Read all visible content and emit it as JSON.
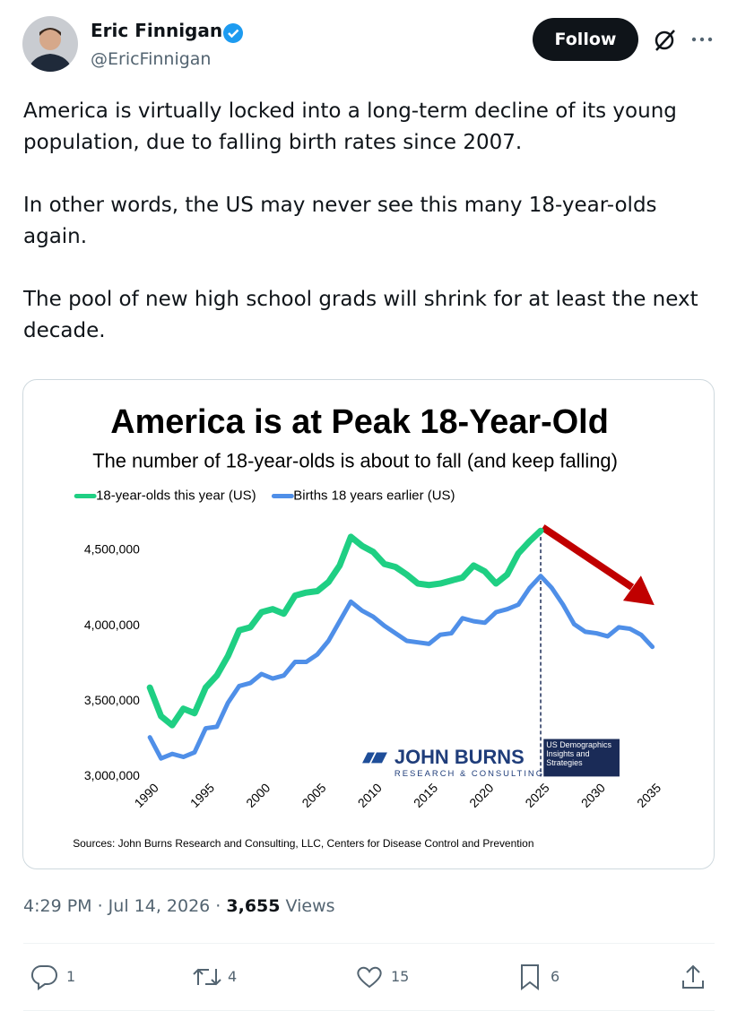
{
  "header": {
    "name": "Eric Finnigan",
    "handle": "@EricFinnigan",
    "follow": "Follow"
  },
  "text": [
    "America is virtually locked into a long-term decline of its young population, due to falling birth rates since 2007.",
    "In other words, the US may never see this many 18-year-olds again.",
    "The pool of new high school grads will shrink for at least the next decade."
  ],
  "chart_data": {
    "type": "line",
    "title": "America is at Peak 18-Year-Old",
    "subtitle": "The number of 18-year-olds is about to fall (and keep falling)",
    "x": [
      1990,
      1991,
      1992,
      1993,
      1994,
      1995,
      1996,
      1997,
      1998,
      1999,
      2000,
      2001,
      2002,
      2003,
      2004,
      2005,
      2006,
      2007,
      2008,
      2009,
      2010,
      2011,
      2012,
      2013,
      2014,
      2015,
      2016,
      2017,
      2018,
      2019,
      2020,
      2021,
      2022,
      2023,
      2024,
      2025,
      2026,
      2027,
      2028,
      2029,
      2030,
      2031,
      2032,
      2033,
      2034,
      2035
    ],
    "series": [
      {
        "name": "18-year-olds this year (US)",
        "color": "#1fcf83",
        "values": [
          3590000,
          3400000,
          3340000,
          3450000,
          3420000,
          3590000,
          3670000,
          3800000,
          3970000,
          3990000,
          4090000,
          4110000,
          4080000,
          4200000,
          4220000,
          4230000,
          4290000,
          4400000,
          4590000,
          4530000,
          4490000,
          4410000,
          4390000,
          4340000,
          4280000,
          4270000,
          4280000,
          4300000,
          4320000,
          4400000,
          4360000,
          4280000,
          4340000,
          4480000,
          4560000,
          4630000,
          null,
          null,
          null,
          null,
          null,
          null,
          null,
          null,
          null,
          null
        ]
      },
      {
        "name": "Births 18 years earlier (US)",
        "color": "#4f8fe8",
        "values": [
          3260000,
          3120000,
          3150000,
          3130000,
          3160000,
          3320000,
          3330000,
          3490000,
          3600000,
          3620000,
          3680000,
          3650000,
          3670000,
          3760000,
          3760000,
          3810000,
          3900000,
          4030000,
          4160000,
          4100000,
          4060000,
          4000000,
          3950000,
          3900000,
          3890000,
          3880000,
          3940000,
          3950000,
          4050000,
          4030000,
          4020000,
          4090000,
          4110000,
          4140000,
          4250000,
          4330000,
          4250000,
          4140000,
          4010000,
          3960000,
          3950000,
          3930000,
          3990000,
          3980000,
          3940000,
          3860000
        ]
      }
    ],
    "xlim": [
      1989.5,
      2035.5
    ],
    "xticks": [
      1990,
      1995,
      2000,
      2005,
      2010,
      2015,
      2020,
      2025,
      2030,
      2035
    ],
    "ylim": [
      3000000,
      4700000
    ],
    "yticks": [
      {
        "value": 3000000,
        "label": "3,000,000"
      },
      {
        "value": 3500000,
        "label": "3,500,000"
      },
      {
        "value": 4000000,
        "label": "4,000,000"
      },
      {
        "value": 4500000,
        "label": "4,500,000"
      }
    ],
    "vline_x": 2025,
    "logo": "JOHN BURNS",
    "logo_sub": "RESEARCH & CONSULTING",
    "badge": [
      "US Demographics",
      "Insights and",
      "Strategies"
    ],
    "source": "Sources: John Burns Research and Consulting, LLC, Centers for Disease Control and Prevention"
  },
  "meta": {
    "time": "4:29 PM · Jul 14, 2026",
    "separator": "·",
    "views": "3,655",
    "views_label": "Views"
  },
  "actions": {
    "replies": "1",
    "reposts": "4",
    "likes": "15",
    "bookmarks": "6"
  }
}
